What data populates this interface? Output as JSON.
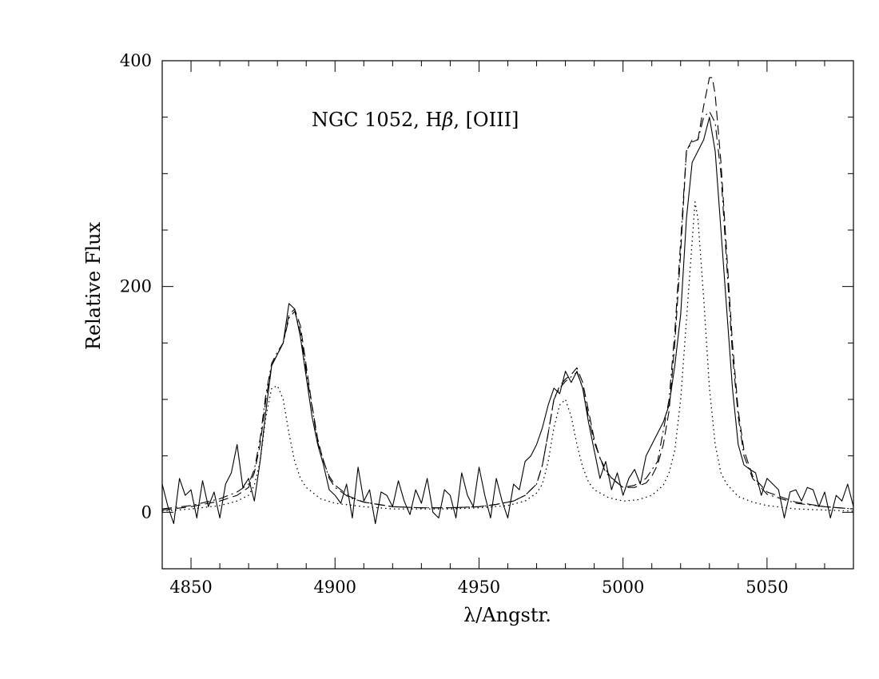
{
  "chart_data": {
    "type": "line",
    "title": "",
    "annotation": {
      "prefix": "NGC  1052,  H",
      "greek": "β",
      "suffix": ",  [OIII]"
    },
    "xlabel": "λ/Angstr.",
    "ylabel": "Relative Flux",
    "xlim": [
      4840,
      5080
    ],
    "ylim": [
      -50,
      400
    ],
    "x_ticks": [
      4850,
      4900,
      4950,
      5000,
      5050
    ],
    "x_tick_labels": [
      "4850",
      "4900",
      "4950",
      "5000",
      "5050"
    ],
    "x_minor_step": 10,
    "y_ticks": [
      0,
      200,
      400
    ],
    "y_tick_labels": [
      "0",
      "200",
      "400"
    ],
    "y_minor_step": 50,
    "grid": false,
    "legend": "none",
    "series": [
      {
        "style": "solid",
        "x": [
          4840,
          4842,
          4844,
          4846,
          4848,
          4850,
          4852,
          4854,
          4856,
          4858,
          4860,
          4862,
          4864,
          4866,
          4868,
          4870,
          4872,
          4874,
          4876,
          4878,
          4880,
          4882,
          4884,
          4886,
          4888,
          4890,
          4892,
          4894,
          4896,
          4898,
          4900,
          4902,
          4904,
          4906,
          4908,
          4910,
          4912,
          4914,
          4916,
          4918,
          4920,
          4922,
          4924,
          4926,
          4928,
          4930,
          4932,
          4934,
          4936,
          4938,
          4940,
          4942,
          4944,
          4946,
          4948,
          4950,
          4952,
          4954,
          4956,
          4958,
          4960,
          4962,
          4964,
          4966,
          4968,
          4970,
          4972,
          4974,
          4976,
          4978,
          4980,
          4982,
          4984,
          4986,
          4988,
          4990,
          4992,
          4994,
          4996,
          4998,
          5000,
          5002,
          5004,
          5006,
          5008,
          5010,
          5012,
          5014,
          5016,
          5018,
          5020,
          5022,
          5024,
          5026,
          5028,
          5030,
          5032,
          5034,
          5036,
          5038,
          5040,
          5042,
          5044,
          5046,
          5048,
          5050,
          5052,
          5054,
          5056,
          5058,
          5060,
          5062,
          5064,
          5066,
          5068,
          5070,
          5072,
          5074,
          5076,
          5078,
          5080
        ],
        "y": [
          25,
          5,
          -10,
          30,
          15,
          20,
          -5,
          28,
          5,
          18,
          -5,
          25,
          35,
          60,
          22,
          30,
          10,
          45,
          90,
          130,
          140,
          150,
          185,
          180,
          155,
          120,
          85,
          60,
          42,
          20,
          15,
          8,
          25,
          -5,
          40,
          10,
          20,
          -10,
          18,
          15,
          5,
          28,
          10,
          -2,
          20,
          8,
          30,
          0,
          -5,
          20,
          15,
          -5,
          35,
          15,
          5,
          40,
          15,
          -5,
          30,
          10,
          -5,
          25,
          20,
          45,
          50,
          60,
          75,
          95,
          110,
          105,
          125,
          115,
          125,
          110,
          80,
          55,
          30,
          45,
          20,
          35,
          15,
          30,
          38,
          25,
          50,
          60,
          70,
          80,
          95,
          130,
          175,
          260,
          310,
          320,
          330,
          350,
          320,
          250,
          180,
          110,
          60,
          42,
          38,
          35,
          15,
          30,
          25,
          20,
          -5,
          18,
          20,
          10,
          22,
          20,
          5,
          18,
          -5,
          15,
          10,
          25,
          5
        ],
        "color": "#000000"
      },
      {
        "style": "dashed",
        "x": [
          4840,
          4850,
          4860,
          4866,
          4870,
          4872,
          4874,
          4876,
          4878,
          4880,
          4882,
          4884,
          4886,
          4888,
          4890,
          4892,
          4894,
          4896,
          4898,
          4900,
          4905,
          4910,
          4920,
          4930,
          4940,
          4950,
          4956,
          4962,
          4966,
          4970,
          4972,
          4974,
          4976,
          4978,
          4980,
          4982,
          4984,
          4986,
          4988,
          4990,
          4992,
          4994,
          4996,
          5000,
          5004,
          5008,
          5010,
          5012,
          5014,
          5016,
          5018,
          5020,
          5022,
          5024,
          5026,
          5028,
          5030,
          5031,
          5032,
          5034,
          5036,
          5038,
          5040,
          5042,
          5045,
          5050,
          5060,
          5070,
          5080
        ],
        "y": [
          2,
          5,
          10,
          15,
          22,
          35,
          60,
          100,
          130,
          140,
          150,
          175,
          180,
          165,
          130,
          95,
          65,
          45,
          32,
          24,
          14,
          9,
          5,
          4,
          4,
          5,
          7,
          10,
          15,
          25,
          42,
          70,
          100,
          112,
          118,
          122,
          128,
          115,
          90,
          65,
          48,
          38,
          30,
          22,
          22,
          26,
          32,
          42,
          60,
          90,
          150,
          230,
          320,
          330,
          330,
          360,
          385,
          385,
          370,
          310,
          230,
          150,
          90,
          55,
          32,
          18,
          9,
          5,
          3
        ],
        "color": "#000000"
      },
      {
        "style": "dotted",
        "x": [
          4840,
          4850,
          4860,
          4866,
          4870,
          4872,
          4874,
          4876,
          4878,
          4880,
          4882,
          4884,
          4886,
          4888,
          4890,
          4895,
          4900,
          4910,
          4920,
          4930,
          4940,
          4950,
          4960,
          4966,
          4970,
          4972,
          4974,
          4976,
          4978,
          4980,
          4982,
          4984,
          4986,
          4988,
          4990,
          4995,
          5000,
          5005,
          5010,
          5014,
          5016,
          5018,
          5020,
          5022,
          5024,
          5025,
          5026,
          5028,
          5030,
          5032,
          5034,
          5036,
          5040,
          5045,
          5050,
          5060,
          5070,
          5080
        ],
        "y": [
          1,
          3,
          6,
          10,
          15,
          24,
          45,
          85,
          110,
          112,
          100,
          70,
          45,
          30,
          22,
          12,
          8,
          5,
          3,
          3,
          3,
          4,
          6,
          10,
          17,
          25,
          45,
          75,
          95,
          100,
          85,
          60,
          40,
          27,
          20,
          13,
          10,
          11,
          15,
          24,
          35,
          55,
          100,
          170,
          240,
          275,
          260,
          190,
          110,
          60,
          35,
          25,
          14,
          9,
          6,
          3,
          2,
          1
        ],
        "color": "#000000"
      },
      {
        "style": "dashdot",
        "x": [
          4840,
          4850,
          4860,
          4866,
          4870,
          4872,
          4874,
          4876,
          4878,
          4880,
          4882,
          4884,
          4886,
          4888,
          4890,
          4894,
          4898,
          4900,
          4905,
          4910,
          4920,
          4930,
          4940,
          4950,
          4956,
          4962,
          4966,
          4970,
          4972,
          4974,
          4976,
          4978,
          4980,
          4982,
          4984,
          4986,
          4988,
          4990,
          4994,
          5000,
          5004,
          5008,
          5012,
          5016,
          5018,
          5020,
          5022,
          5024,
          5026,
          5028,
          5030,
          5032,
          5034,
          5036,
          5038,
          5040,
          5042,
          5045,
          5050,
          5060,
          5070,
          5080
        ],
        "y": [
          3,
          6,
          12,
          18,
          25,
          38,
          65,
          105,
          132,
          142,
          150,
          172,
          178,
          160,
          125,
          62,
          30,
          22,
          13,
          9,
          5,
          4,
          4,
          5,
          7,
          10,
          15,
          25,
          42,
          70,
          100,
          110,
          116,
          120,
          124,
          110,
          85,
          62,
          35,
          22,
          24,
          30,
          45,
          100,
          160,
          240,
          320,
          328,
          330,
          350,
          355,
          345,
          300,
          220,
          140,
          85,
          50,
          30,
          16,
          8,
          5,
          3
        ],
        "color": "#000000"
      }
    ]
  }
}
